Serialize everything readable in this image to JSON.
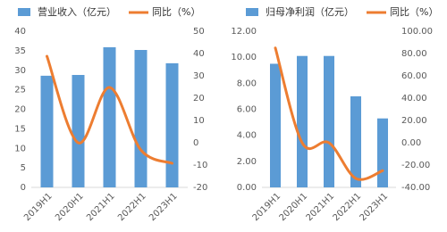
{
  "chart_data": [
    {
      "type": "bar_line",
      "categories": [
        "2019H1",
        "2020H1",
        "2021H1",
        "2022H1",
        "2023H1"
      ],
      "series": [
        {
          "name": "营业收入（亿元）",
          "type": "bar",
          "color": "#5b9bd5",
          "values": [
            28.6,
            28.8,
            35.9,
            35.2,
            31.8
          ]
        },
        {
          "name": "同比（%）",
          "type": "line",
          "axis": "y2",
          "color": "#ed7d31",
          "values": [
            38.8,
            0,
            24.8,
            -3.2,
            -9.2
          ]
        }
      ],
      "ylim": [
        0,
        40
      ],
      "yticks": [
        0,
        5,
        10,
        15,
        20,
        25,
        30,
        35,
        40
      ],
      "y2lim": [
        -20,
        50
      ],
      "y2ticks": [
        -20,
        -10,
        0,
        10,
        20,
        30,
        40,
        50
      ]
    },
    {
      "type": "bar_line",
      "categories": [
        "2019H1",
        "2020H1",
        "2021H1",
        "2022H1",
        "2023H1"
      ],
      "series": [
        {
          "name": "归母净利润（亿元）",
          "type": "bar",
          "color": "#5b9bd5",
          "values": [
            9.5,
            10.1,
            10.1,
            7.0,
            5.3
          ]
        },
        {
          "name": "同比（%）",
          "type": "line",
          "axis": "y2",
          "color": "#ed7d31",
          "values": [
            85,
            0,
            0,
            -32,
            -25
          ]
        }
      ],
      "ylim": [
        0,
        12
      ],
      "yticks": [
        {
          "value": 0,
          "label": "0.00"
        },
        {
          "value": 2,
          "label": "2.00"
        },
        {
          "value": 4,
          "label": "4.00"
        },
        {
          "value": 6,
          "label": "6.00"
        },
        {
          "value": 8,
          "label": "8.00"
        },
        {
          "value": 10,
          "label": "10.00"
        },
        {
          "value": 12,
          "label": "12.00"
        }
      ],
      "y2lim": [
        -40,
        100
      ],
      "y2ticks": [
        {
          "value": -40,
          "label": "-40.00"
        },
        {
          "value": -20,
          "label": "-20.00"
        },
        {
          "value": 0,
          "label": "0.00"
        },
        {
          "value": 20,
          "label": "20.00"
        },
        {
          "value": 40,
          "label": "40.00"
        },
        {
          "value": 60,
          "label": "60.00"
        },
        {
          "value": 80,
          "label": "80.00"
        },
        {
          "value": 100,
          "label": "100.00"
        }
      ]
    }
  ]
}
